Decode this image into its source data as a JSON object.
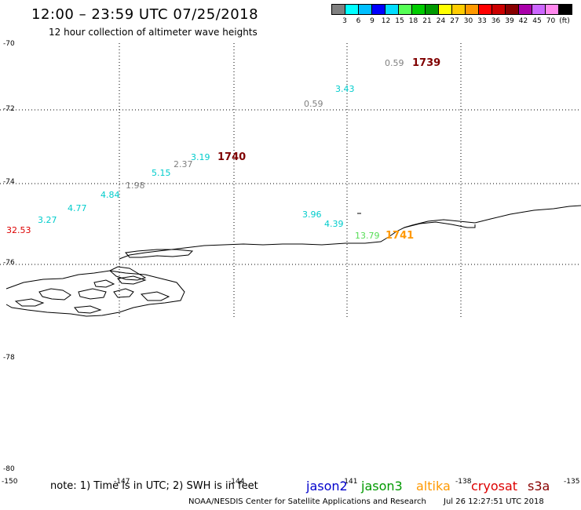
{
  "header": {
    "title": "12:00 – 23:59 UTC 07/25/2018",
    "subtitle": "12 hour collection of altimeter wave heights"
  },
  "colorbar": {
    "colors": [
      "#808080",
      "#00ffff",
      "#00bfff",
      "#0000ff",
      "#00ddff",
      "#55ff55",
      "#00cc00",
      "#009900",
      "#ffff00",
      "#ffcc00",
      "#ff9900",
      "#ff0000",
      "#cc0000",
      "#880000",
      "#aa00aa",
      "#cc66ff",
      "#ff88ee",
      "#000000"
    ],
    "labels": [
      "3",
      "6",
      "9",
      "12",
      "15",
      "18",
      "21",
      "24",
      "27",
      "30",
      "33",
      "36",
      "39",
      "42",
      "45",
      "70",
      "(ft)"
    ]
  },
  "axes": {
    "lat_labels": [
      "-70",
      "-72",
      "-74",
      "-76",
      "-78",
      "-80"
    ],
    "lon_labels": [
      "-150",
      "-147",
      "-144",
      "-141",
      "-138",
      "-135"
    ]
  },
  "observations": [
    {
      "text": "0.59",
      "color": "#808080",
      "name": "obs-0-59-a"
    },
    {
      "text": "1739",
      "color": "#800000",
      "name": "time-1739"
    },
    {
      "text": "3.43",
      "color": "#00cccc",
      "name": "obs-3-43"
    },
    {
      "text": "0.59",
      "color": "#808080",
      "name": "obs-0-59-b"
    },
    {
      "text": "3.19",
      "color": "#00cccc",
      "name": "obs-3-19"
    },
    {
      "text": "1740",
      "color": "#800000",
      "name": "time-1740"
    },
    {
      "text": "2.37",
      "color": "#808080",
      "name": "obs-2-37"
    },
    {
      "text": "5.15",
      "color": "#00cccc",
      "name": "obs-5-15"
    },
    {
      "text": "1.98",
      "color": "#808080",
      "name": "obs-1-98"
    },
    {
      "text": "4.84",
      "color": "#00cccc",
      "name": "obs-4-84"
    },
    {
      "text": "4.77",
      "color": "#00cccc",
      "name": "obs-4-77"
    },
    {
      "text": "3.27",
      "color": "#00cccc",
      "name": "obs-3-27"
    },
    {
      "text": "32.53",
      "color": "#dd0000",
      "name": "obs-32-53"
    },
    {
      "text": "3.96",
      "color": "#00cccc",
      "name": "obs-3-96"
    },
    {
      "text": "4.39",
      "color": "#00cccc",
      "name": "obs-4-39"
    },
    {
      "text": "13.79",
      "color": "#55dd55",
      "name": "obs-13-79"
    },
    {
      "text": "1741",
      "color": "#ff9900",
      "name": "time-1741"
    }
  ],
  "footer": {
    "note": "note:  1) Time is in UTC;  2) SWH is in feet",
    "satellites": [
      {
        "name": "jason2",
        "color": "#0000cc"
      },
      {
        "name": "jason3",
        "color": "#009900"
      },
      {
        "name": "altika",
        "color": "#ff9900"
      },
      {
        "name": "cryosat",
        "color": "#dd0000"
      },
      {
        "name": "s3a",
        "color": "#880000"
      }
    ],
    "credit": "NOAA/NESDIS Center for Satellite Applications and Research",
    "timestamp": "Jul 26 12:27:51 UTC 2018"
  }
}
